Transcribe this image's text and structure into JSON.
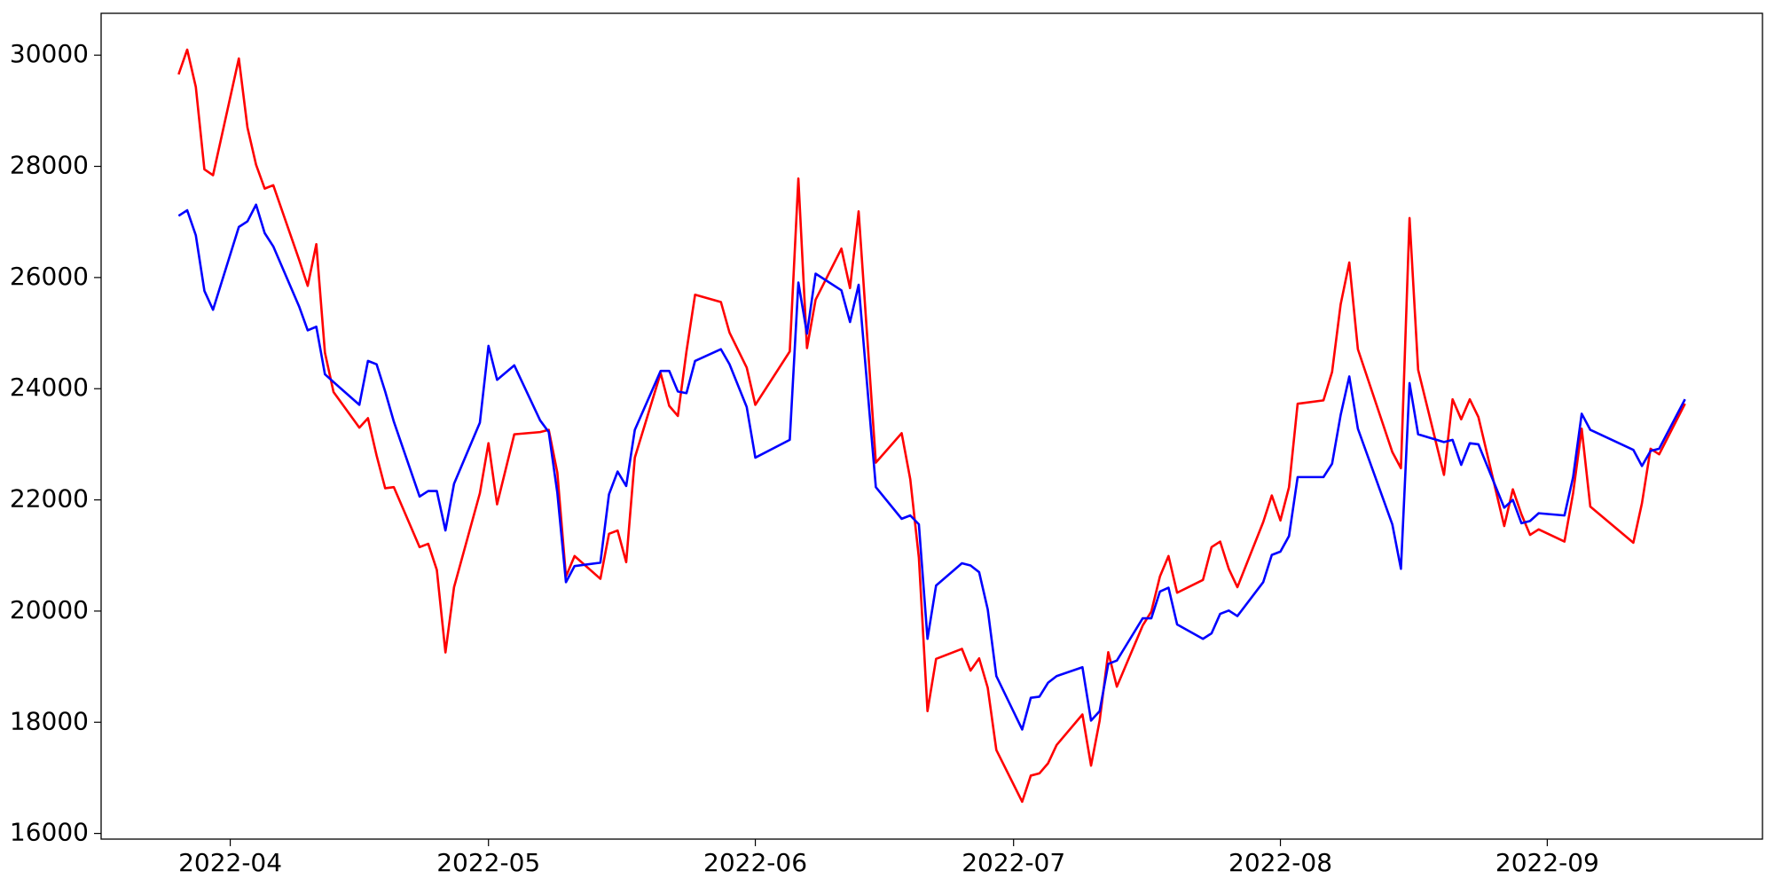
{
  "chart_data": {
    "type": "line",
    "x": [
      19077,
      19078,
      19079,
      19080,
      19081,
      19084,
      19085,
      19086,
      19087,
      19088,
      19091,
      19092,
      19093,
      19094,
      19095,
      19098,
      19099,
      19100,
      19101,
      19102,
      19105,
      19106,
      19107,
      19108,
      19109,
      19112,
      19113,
      19114,
      19116,
      19119,
      19120,
      19121,
      19122,
      19123,
      19126,
      19127,
      19128,
      19129,
      19130,
      19133,
      19134,
      19135,
      19136,
      19137,
      19140,
      19141,
      19143,
      19144,
      19148,
      19149,
      19150,
      19151,
      19154,
      19155,
      19156,
      19158,
      19161,
      19162,
      19163,
      19164,
      19165,
      19168,
      19169,
      19170,
      19171,
      19172,
      19175,
      19176,
      19177,
      19178,
      19179,
      19182,
      19183,
      19184,
      19185,
      19186,
      19189,
      19190,
      19191,
      19192,
      19193,
      19196,
      19197,
      19198,
      19199,
      19200,
      19203,
      19204,
      19205,
      19206,
      19207,
      19210,
      19211,
      19212,
      19213,
      19214,
      19218,
      19219,
      19220,
      19221,
      19224,
      19225,
      19226,
      19227,
      19228,
      19231,
      19232,
      19233,
      19234,
      19235,
      19238,
      19239,
      19240,
      19241,
      19246,
      19247,
      19248,
      19249,
      19252
    ],
    "series": [
      {
        "color": "#ff0000",
        "values": [
          29654,
          30100,
          29430,
          27945,
          27840,
          29940,
          28700,
          28030,
          27600,
          27660,
          26320,
          25850,
          26600,
          24650,
          23940,
          23300,
          23470,
          22800,
          22210,
          22230,
          21150,
          21210,
          20740,
          19256,
          20430,
          22120,
          23020,
          21920,
          23180,
          23220,
          23260,
          22490,
          20620,
          20990,
          20580,
          21390,
          21450,
          20880,
          22760,
          24280,
          23690,
          23510,
          24670,
          25690,
          25560,
          25010,
          24380,
          23710,
          24670,
          27780,
          24730,
          25600,
          26520,
          25810,
          27190,
          22670,
          23200,
          22370,
          20960,
          18200,
          19140,
          19320,
          18930,
          19150,
          18620,
          17500,
          16570,
          17040,
          17080,
          17260,
          17590,
          18140,
          17220,
          18030,
          19260,
          18640,
          19740,
          19990,
          20620,
          20990,
          20330,
          20560,
          21150,
          21250,
          20760,
          20430,
          21600,
          22080,
          21630,
          22230,
          23730,
          23790,
          24300,
          25520,
          26270,
          24710,
          22860,
          22570,
          27070,
          24340,
          22450,
          23810,
          23450,
          23810,
          23490,
          21530,
          22190,
          21740,
          21370,
          21470,
          21250,
          22120,
          23280,
          21880,
          21230,
          21940,
          22920,
          22820,
          23730
        ]
      },
      {
        "color": "#0000ff",
        "values": [
          27110,
          27210,
          26760,
          25760,
          25420,
          26910,
          27010,
          27310,
          26800,
          26560,
          25480,
          25050,
          25115,
          24260,
          24120,
          23710,
          24500,
          24440,
          23950,
          23410,
          22060,
          22160,
          22160,
          21450,
          22290,
          23390,
          24770,
          24160,
          24420,
          23430,
          23220,
          22125,
          20520,
          20810,
          20870,
          22100,
          22510,
          22250,
          23260,
          24320,
          24320,
          23950,
          23920,
          24500,
          24710,
          24440,
          23670,
          22760,
          23080,
          25910,
          24990,
          26070,
          25770,
          25200,
          25870,
          22230,
          21660,
          21720,
          21560,
          19500,
          20460,
          20860,
          20820,
          20700,
          20030,
          18830,
          17870,
          18440,
          18460,
          18710,
          18830,
          18990,
          18030,
          18200,
          19050,
          19110,
          19870,
          19870,
          20350,
          20420,
          19760,
          19500,
          19600,
          19950,
          20010,
          19910,
          20520,
          21010,
          21070,
          21350,
          22410,
          22410,
          22650,
          23530,
          24220,
          23280,
          21560,
          20760,
          24100,
          23180,
          23040,
          23080,
          22630,
          23020,
          23000,
          21860,
          22000,
          21580,
          21620,
          21760,
          21720,
          22410,
          23550,
          23260,
          22900,
          22610,
          22880,
          22920,
          23810
        ]
      }
    ],
    "xlim": [
      19068,
      19261
    ],
    "xticks": [
      {
        "value": 19083,
        "label": "2022-04"
      },
      {
        "value": 19113,
        "label": "2022-05"
      },
      {
        "value": 19144,
        "label": "2022-06"
      },
      {
        "value": 19174,
        "label": "2022-07"
      },
      {
        "value": 19205,
        "label": "2022-08"
      },
      {
        "value": 19236,
        "label": "2022-09"
      }
    ],
    "ylim": [
      15898,
      30753
    ],
    "yticks": [
      16000,
      18000,
      20000,
      22000,
      24000,
      26000,
      28000,
      30000
    ]
  }
}
